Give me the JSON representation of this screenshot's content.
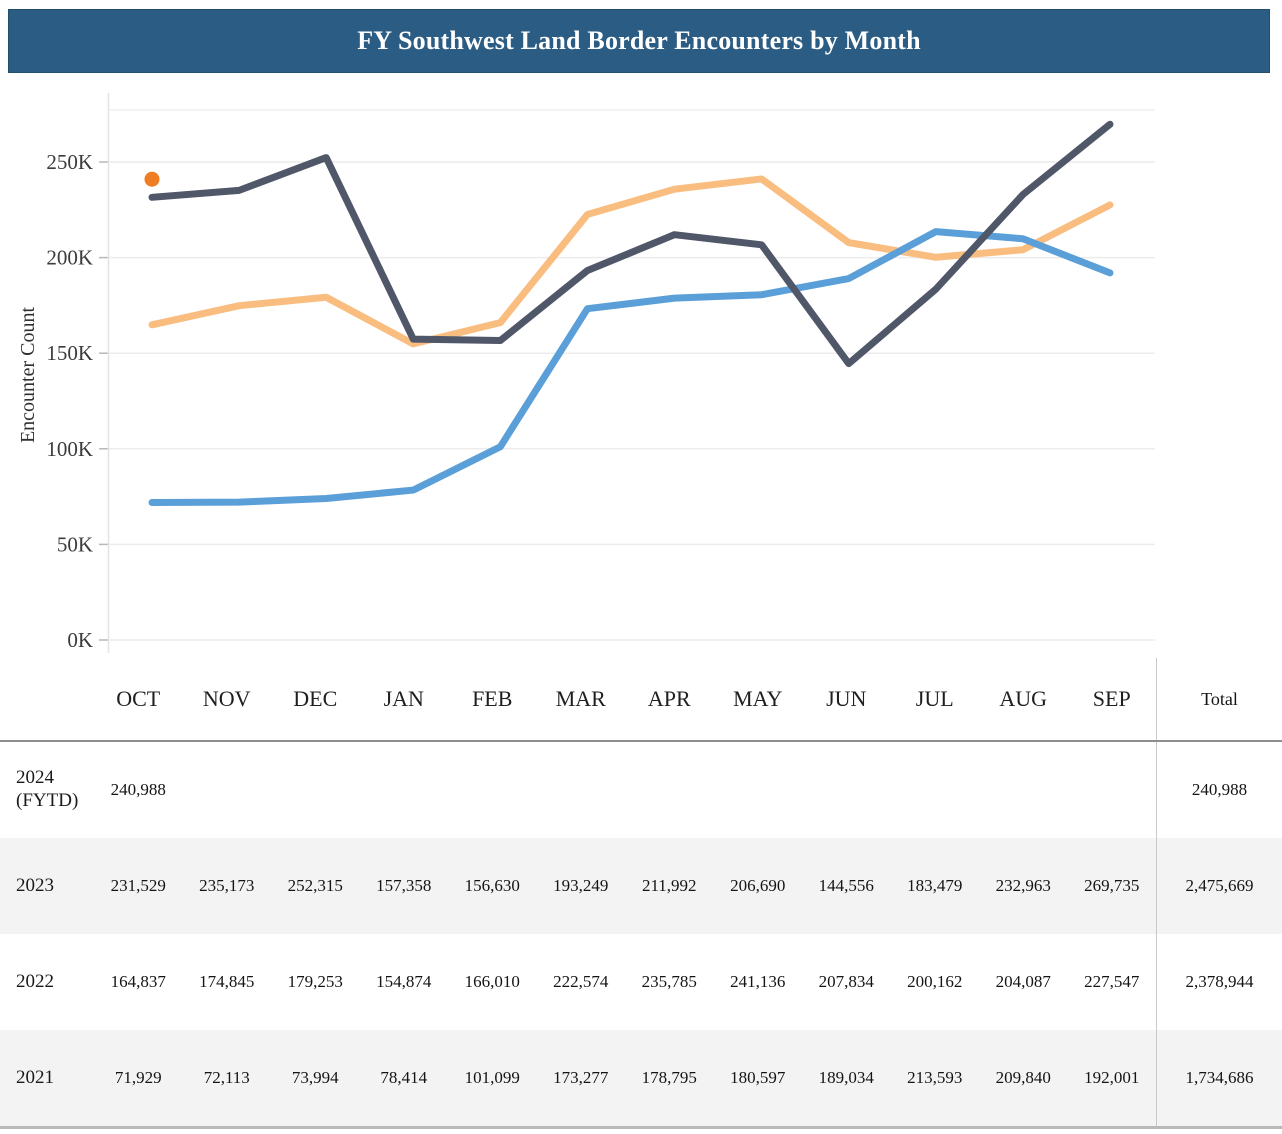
{
  "header": {
    "title": "FY Southwest Land Border Encounters by Month"
  },
  "chart_data": {
    "type": "line",
    "title": "FY Southwest Land Border Encounters by Month",
    "categories": [
      "OCT",
      "NOV",
      "DEC",
      "JAN",
      "FEB",
      "MAR",
      "APR",
      "MAY",
      "JUN",
      "JUL",
      "AUG",
      "SEP"
    ],
    "xlabel": "",
    "ylabel": "Encounter Count",
    "ylim": [
      0,
      277000
    ],
    "grid": true,
    "legend_position": "none",
    "y_tick_values": [
      0,
      50000,
      100000,
      150000,
      200000,
      250000
    ],
    "y_tick_labels": [
      "0K",
      "50K",
      "100K",
      "150K",
      "200K",
      "250K"
    ],
    "series": [
      {
        "name": "2022",
        "style": "line",
        "color": "#f9bd80",
        "z": 1,
        "values": [
          164837,
          174845,
          179253,
          154874,
          166010,
          222574,
          235785,
          241136,
          207834,
          200162,
          204087,
          227547
        ],
        "total": 2378944
      },
      {
        "name": "2021",
        "style": "line",
        "color": "#5b9fd8",
        "z": 2,
        "values": [
          71929,
          72113,
          73994,
          78414,
          101099,
          173277,
          178795,
          180597,
          189034,
          213593,
          209840,
          192001
        ],
        "total": 1734686
      },
      {
        "name": "2023",
        "style": "line",
        "color": "#505769",
        "z": 3,
        "values": [
          231529,
          235173,
          252315,
          157358,
          156630,
          193249,
          211992,
          206690,
          144556,
          183479,
          232963,
          269735
        ],
        "total": 2475669
      },
      {
        "name": "2024 (FYTD)",
        "style": "point",
        "color": "#ee7d23",
        "z": 4,
        "values": [
          240988,
          null,
          null,
          null,
          null,
          null,
          null,
          null,
          null,
          null,
          null,
          null
        ],
        "total": 240988
      }
    ]
  },
  "table": {
    "columns": [
      "OCT",
      "NOV",
      "DEC",
      "JAN",
      "FEB",
      "MAR",
      "APR",
      "MAY",
      "JUN",
      "JUL",
      "AUG",
      "SEP"
    ],
    "total_label": "Total",
    "rows": [
      {
        "label": "2024\n(FYTD)",
        "shaded": false,
        "values": [
          "240,988",
          "",
          "",
          "",
          "",
          "",
          "",
          "",
          "",
          "",
          "",
          ""
        ],
        "total": "240,988"
      },
      {
        "label": "2023",
        "shaded": true,
        "values": [
          "231,529",
          "235,173",
          "252,315",
          "157,358",
          "156,630",
          "193,249",
          "211,992",
          "206,690",
          "144,556",
          "183,479",
          "232,963",
          "269,735"
        ],
        "total": "2,475,669"
      },
      {
        "label": "2022",
        "shaded": false,
        "values": [
          "164,837",
          "174,845",
          "179,253",
          "154,874",
          "166,010",
          "222,574",
          "235,785",
          "241,136",
          "207,834",
          "200,162",
          "204,087",
          "227,547"
        ],
        "total": "2,378,944"
      },
      {
        "label": "2021",
        "shaded": true,
        "values": [
          "71,929",
          "72,113",
          "73,994",
          "78,414",
          "101,099",
          "173,277",
          "178,795",
          "180,597",
          "189,034",
          "213,593",
          "209,840",
          "192,001"
        ],
        "total": "1,734,686"
      }
    ]
  },
  "colors": {
    "title_bar_bg": "#2b5c84",
    "title_text": "#ffffff",
    "series_2024_point": "#ee7d23",
    "series_2023_line": "#505769",
    "series_2022_line": "#f9bd80",
    "series_2021_line": "#5b9fd8",
    "gridline": "#ececec",
    "shaded_row_bg": "#f3f3f3",
    "header_rule": "#8f8f8f"
  }
}
